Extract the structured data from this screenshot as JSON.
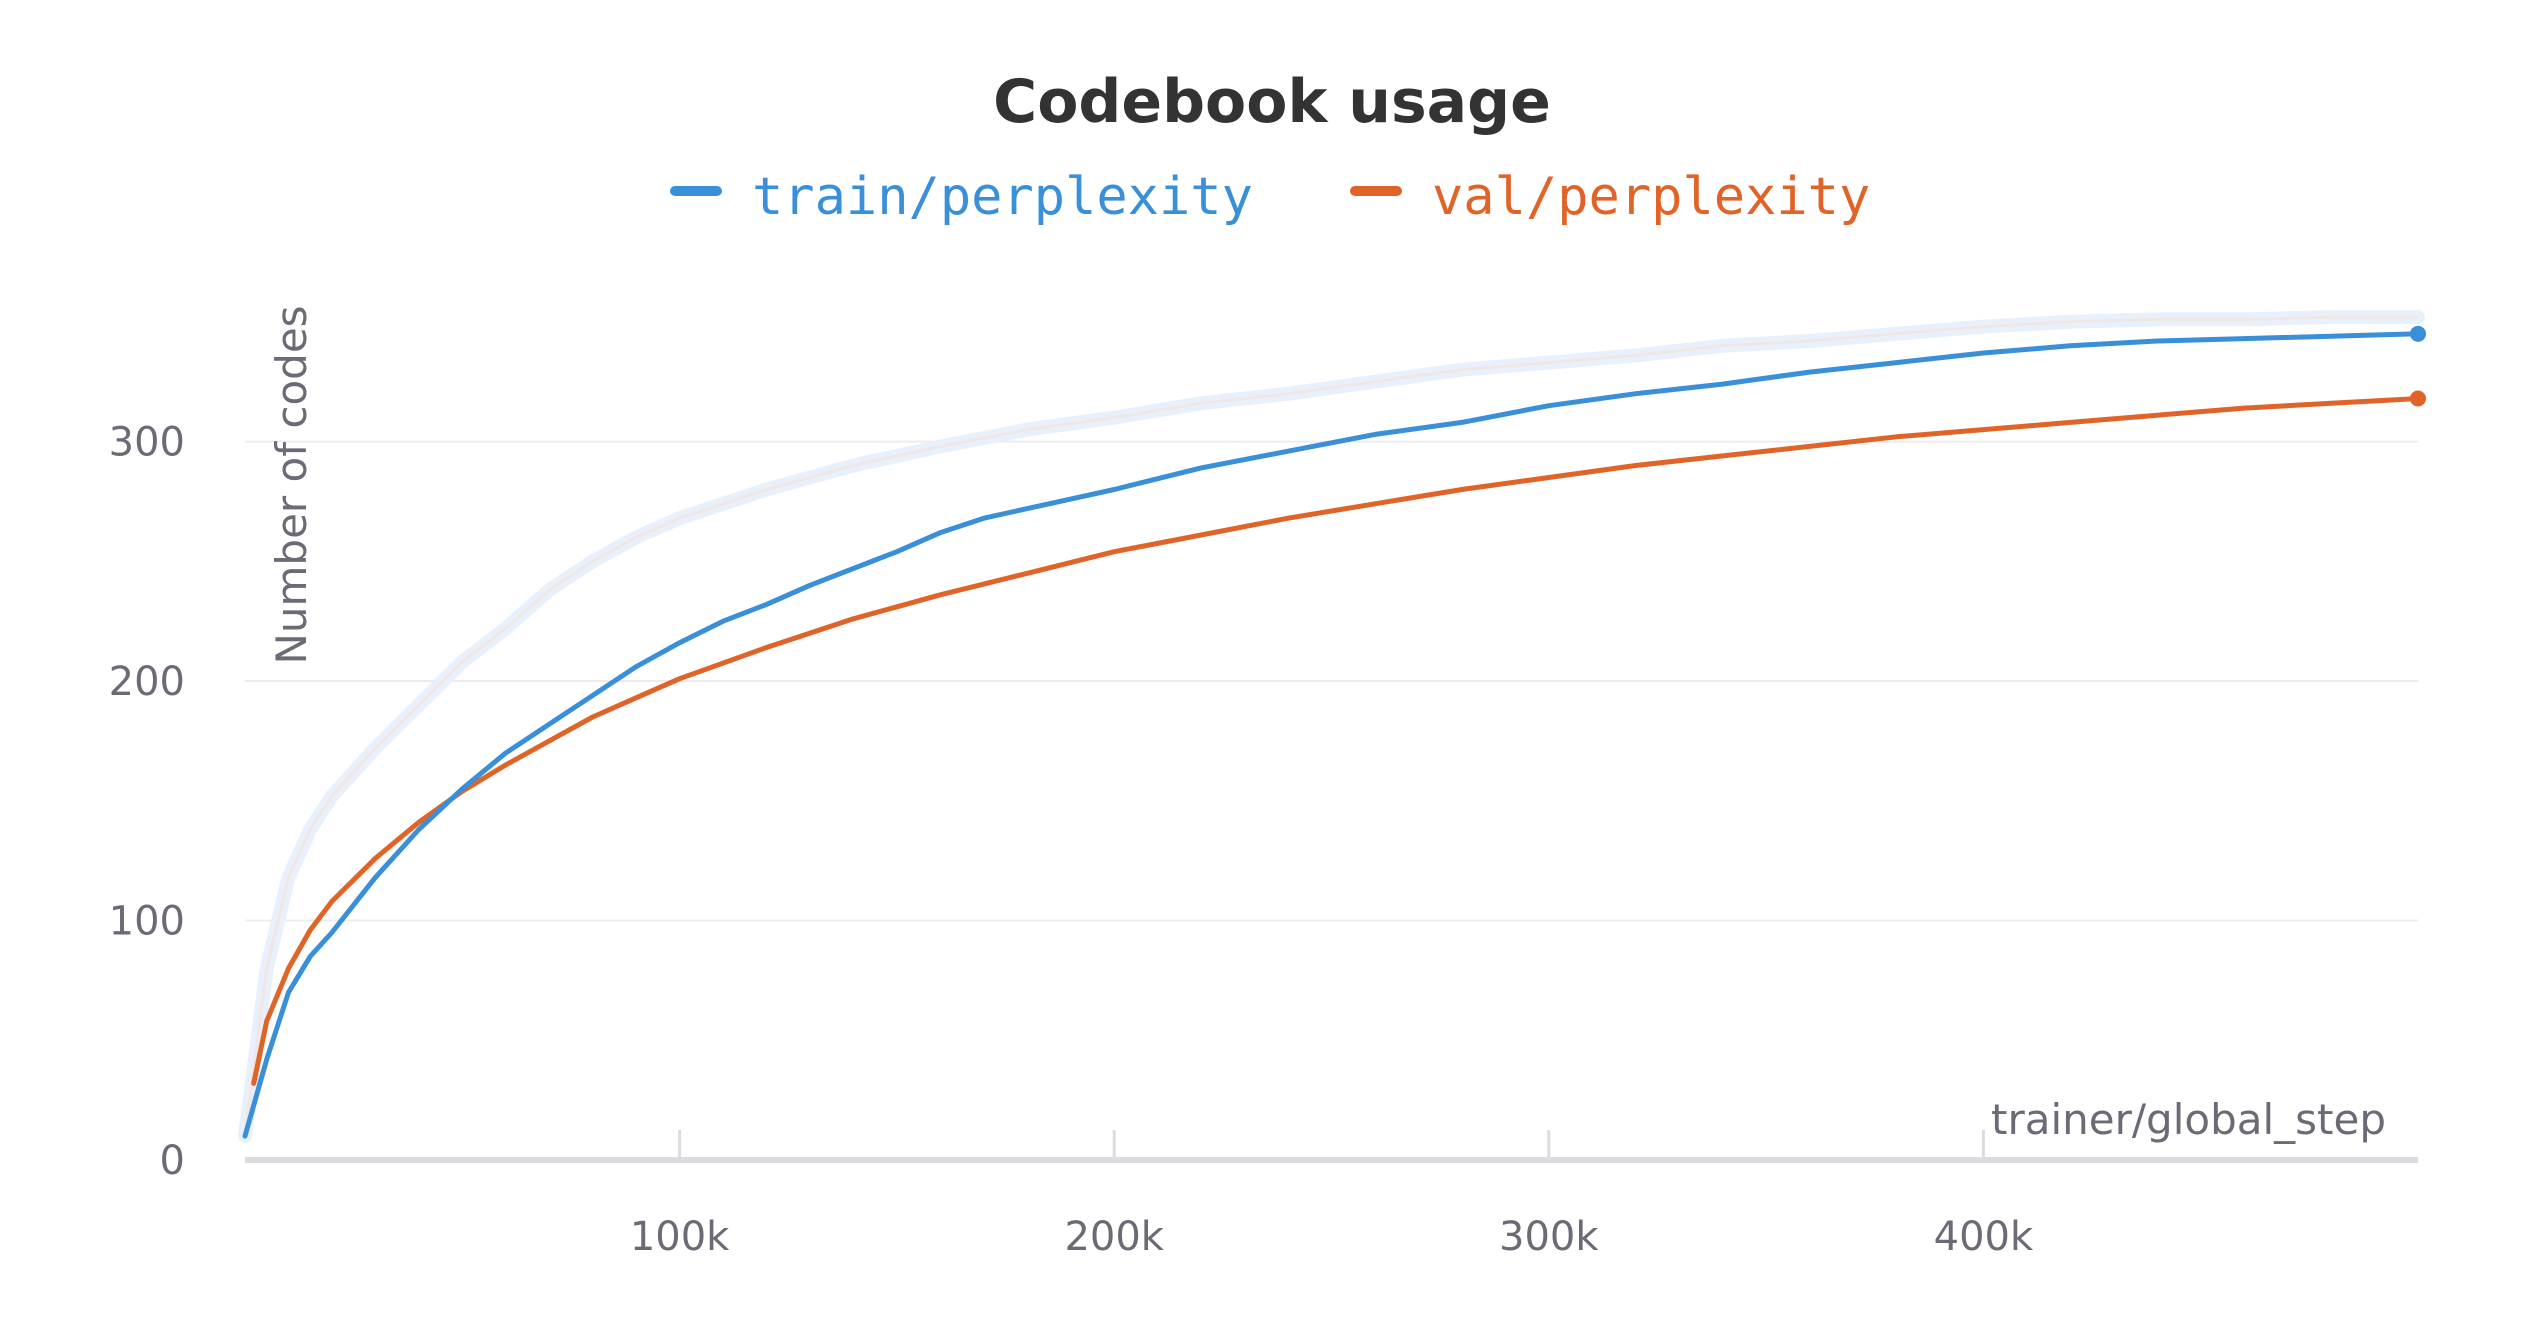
{
  "chart_data": {
    "type": "line",
    "title": "Codebook usage",
    "xlabel": "trainer/global_step",
    "ylabel": "Number of codes",
    "xlim": [
      0,
      500000
    ],
    "ylim": [
      0,
      380
    ],
    "x_ticks": [
      {
        "value": 100000,
        "label": "100k"
      },
      {
        "value": 200000,
        "label": "200k"
      },
      {
        "value": 300000,
        "label": "300k"
      },
      {
        "value": 400000,
        "label": "400k"
      }
    ],
    "y_ticks": [
      {
        "value": 0,
        "label": "0"
      },
      {
        "value": 100,
        "label": "100"
      },
      {
        "value": 200,
        "label": "200"
      },
      {
        "value": 300,
        "label": "300"
      }
    ],
    "grid": true,
    "legend_position": "top",
    "series": [
      {
        "name": "train/perplexity",
        "color": "#3a8fd9",
        "raw_color": "#e8f1fb",
        "x": [
          0,
          5000,
          10000,
          15000,
          20000,
          30000,
          40000,
          50000,
          60000,
          70000,
          80000,
          90000,
          100000,
          110000,
          120000,
          130000,
          140000,
          150000,
          160000,
          170000,
          180000,
          190000,
          200000,
          220000,
          240000,
          260000,
          280000,
          300000,
          320000,
          340000,
          360000,
          380000,
          400000,
          420000,
          440000,
          460000,
          480000,
          500000
        ],
        "values": [
          10,
          42,
          70,
          85,
          95,
          118,
          138,
          155,
          170,
          182,
          194,
          206,
          216,
          225,
          232,
          240,
          247,
          254,
          262,
          268,
          272,
          276,
          280,
          289,
          296,
          303,
          308,
          315,
          320,
          324,
          329,
          333,
          337,
          340,
          342,
          343,
          344,
          345
        ],
        "raw_x": [
          0,
          5000,
          10000,
          15000,
          20000,
          30000,
          40000,
          50000,
          60000,
          70000,
          80000,
          90000,
          100000,
          120000,
          140000,
          160000,
          180000,
          200000,
          220000,
          240000,
          260000,
          280000,
          300000,
          320000,
          340000,
          360000,
          380000,
          400000,
          420000,
          440000,
          460000,
          480000,
          500000
        ],
        "raw_values": [
          10,
          80,
          118,
          138,
          152,
          172,
          190,
          208,
          222,
          238,
          250,
          260,
          268,
          280,
          290,
          298,
          305,
          310,
          316,
          320,
          325,
          330,
          333,
          336,
          340,
          342,
          345,
          348,
          350,
          351,
          351,
          352,
          352
        ]
      },
      {
        "name": "val/perplexity",
        "color": "#e06428",
        "x": [
          2000,
          5000,
          10000,
          15000,
          20000,
          30000,
          40000,
          50000,
          60000,
          70000,
          80000,
          90000,
          100000,
          120000,
          140000,
          160000,
          180000,
          200000,
          220000,
          240000,
          260000,
          280000,
          300000,
          320000,
          340000,
          360000,
          380000,
          400000,
          420000,
          440000,
          460000,
          480000,
          500000
        ],
        "values": [
          32,
          58,
          80,
          96,
          108,
          126,
          141,
          154,
          165,
          175,
          185,
          193,
          201,
          214,
          226,
          236,
          245,
          254,
          261,
          268,
          274,
          280,
          285,
          290,
          294,
          298,
          302,
          305,
          308,
          311,
          314,
          316,
          318
        ]
      }
    ]
  }
}
